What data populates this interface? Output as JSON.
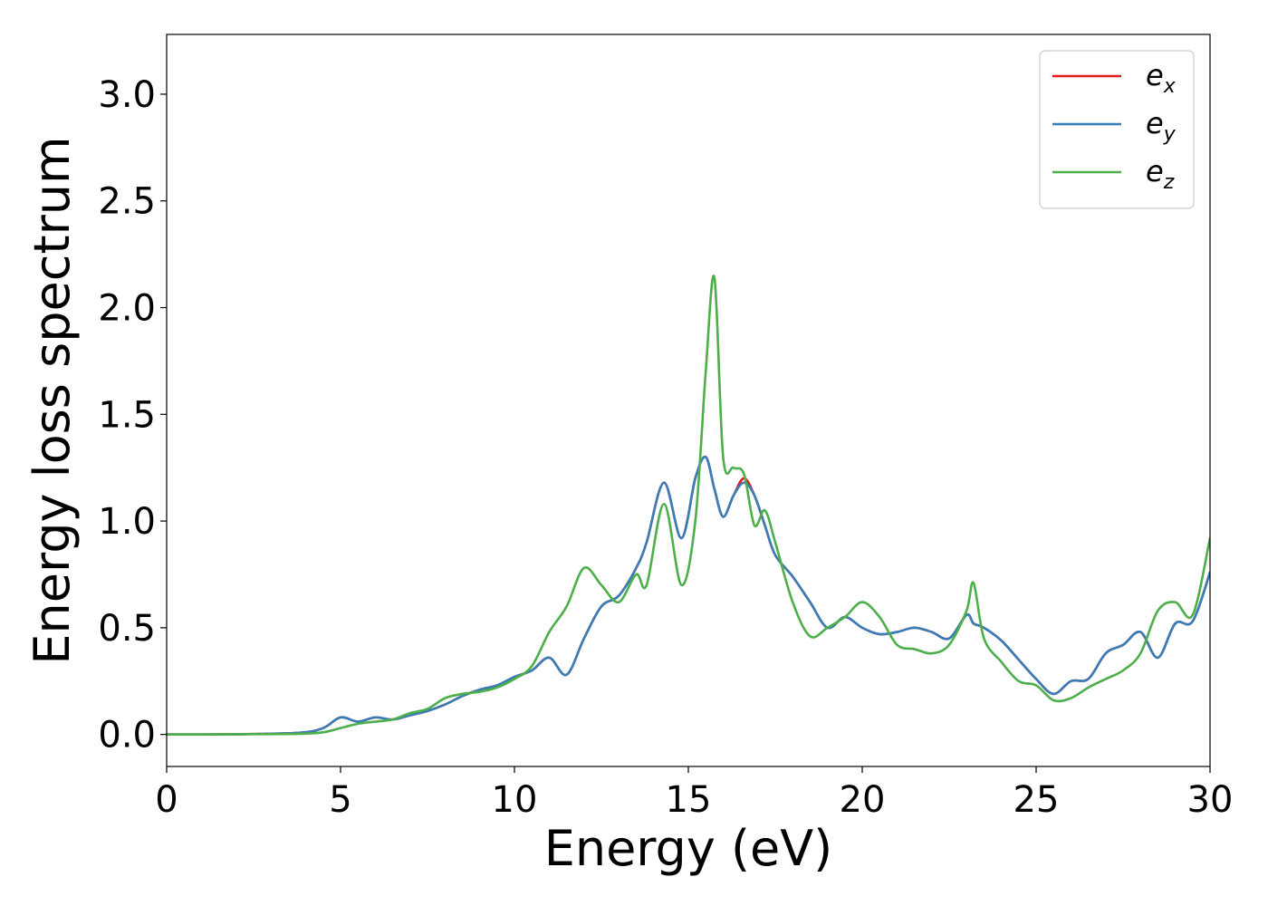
{
  "chart_data": {
    "type": "line",
    "title": "",
    "xlabel": "Energy (eV)",
    "ylabel": "Energy loss spectrum",
    "xlim": [
      0,
      30
    ],
    "ylim": [
      -0.15,
      3.28
    ],
    "xticks": [
      "0",
      "5",
      "10",
      "15",
      "20",
      "25",
      "30"
    ],
    "xtick_values": [
      0,
      5,
      10,
      15,
      20,
      25,
      30
    ],
    "yticks": [
      "0.0",
      "0.5",
      "1.0",
      "1.5",
      "2.0",
      "2.5",
      "3.0"
    ],
    "ytick_values": [
      0,
      0.5,
      1.0,
      1.5,
      2.0,
      2.5,
      3.0
    ],
    "grid": false,
    "legend_position": "top-right",
    "x": [
      0,
      2,
      3.8,
      4.5,
      5,
      5.5,
      6,
      6.5,
      7,
      7.5,
      8,
      8.5,
      9,
      9.5,
      10,
      10.5,
      11,
      11.5,
      12,
      12.5,
      13,
      13.5,
      13.8,
      14.3,
      14.8,
      15.2,
      15.5,
      15.75,
      16,
      16.3,
      16.6,
      16.9,
      17.2,
      17.5,
      18,
      18.5,
      19,
      19.5,
      20,
      20.5,
      21,
      21.5,
      22,
      22.5,
      23,
      23.2,
      23.5,
      24,
      24.5,
      25,
      25.5,
      26,
      26.5,
      27,
      27.5,
      28,
      28.5,
      29,
      29.5,
      30
    ],
    "series": [
      {
        "name": "x",
        "color": "#e41a1c",
        "values": [
          0,
          0.001,
          0.008,
          0.03,
          0.08,
          0.06,
          0.08,
          0.07,
          0.09,
          0.11,
          0.14,
          0.18,
          0.21,
          0.23,
          0.27,
          0.3,
          0.36,
          0.28,
          0.45,
          0.6,
          0.65,
          0.78,
          0.9,
          1.18,
          0.92,
          1.2,
          1.3,
          1.15,
          1.02,
          1.12,
          1.2,
          1.12,
          0.98,
          0.84,
          0.74,
          0.62,
          0.5,
          0.55,
          0.5,
          0.47,
          0.48,
          0.5,
          0.48,
          0.45,
          0.56,
          0.52,
          0.5,
          0.44,
          0.35,
          0.26,
          0.19,
          0.25,
          0.26,
          0.38,
          0.42,
          0.48,
          0.36,
          0.52,
          0.53,
          0.76
        ]
      },
      {
        "name": "y",
        "color": "#377eb8",
        "values": [
          0,
          0.001,
          0.008,
          0.03,
          0.08,
          0.06,
          0.08,
          0.07,
          0.09,
          0.11,
          0.14,
          0.18,
          0.21,
          0.23,
          0.27,
          0.3,
          0.36,
          0.28,
          0.45,
          0.6,
          0.65,
          0.78,
          0.9,
          1.18,
          0.92,
          1.2,
          1.3,
          1.15,
          1.02,
          1.12,
          1.18,
          1.12,
          0.98,
          0.84,
          0.74,
          0.62,
          0.5,
          0.55,
          0.5,
          0.47,
          0.48,
          0.5,
          0.48,
          0.45,
          0.56,
          0.52,
          0.5,
          0.44,
          0.35,
          0.26,
          0.19,
          0.25,
          0.26,
          0.38,
          0.42,
          0.48,
          0.36,
          0.52,
          0.53,
          0.76
        ]
      },
      {
        "name": "z",
        "color": "#4daf4a",
        "values": [
          0,
          0.001,
          0.003,
          0.01,
          0.03,
          0.05,
          0.06,
          0.07,
          0.1,
          0.12,
          0.17,
          0.19,
          0.2,
          0.22,
          0.26,
          0.32,
          0.48,
          0.6,
          0.78,
          0.7,
          0.62,
          0.75,
          0.7,
          1.08,
          0.7,
          1.0,
          1.7,
          2.14,
          1.3,
          1.25,
          1.22,
          0.98,
          1.05,
          0.9,
          0.62,
          0.46,
          0.5,
          0.55,
          0.62,
          0.55,
          0.42,
          0.4,
          0.38,
          0.42,
          0.58,
          0.71,
          0.45,
          0.34,
          0.25,
          0.23,
          0.16,
          0.17,
          0.22,
          0.26,
          0.3,
          0.38,
          0.58,
          0.62,
          0.56,
          0.92
        ]
      }
    ]
  },
  "legend": {
    "entries": [
      {
        "base": "e",
        "sub": "x"
      },
      {
        "base": "e",
        "sub": "y"
      },
      {
        "base": "e",
        "sub": "z"
      }
    ]
  }
}
